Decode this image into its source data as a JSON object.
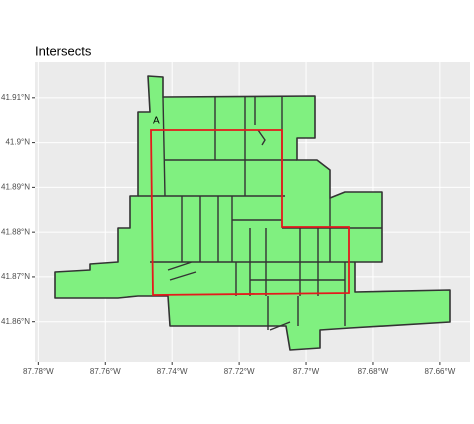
{
  "chart_data": {
    "type": "map",
    "title": "Intersects",
    "annotations": [
      "A"
    ],
    "xlim": [
      -87.781,
      -87.651
    ],
    "ylim": [
      41.851,
      41.918
    ],
    "xticks": [
      {
        "value": -87.78,
        "label": "87.78°W"
      },
      {
        "value": -87.76,
        "label": "87.76°W"
      },
      {
        "value": -87.74,
        "label": "87.74°W"
      },
      {
        "value": -87.72,
        "label": "87.72°W"
      },
      {
        "value": -87.7,
        "label": "87.7°W"
      },
      {
        "value": -87.68,
        "label": "87.68°W"
      },
      {
        "value": -87.66,
        "label": "87.66°W"
      }
    ],
    "yticks": [
      {
        "value": 41.86,
        "label": "41.86°N"
      },
      {
        "value": 41.87,
        "label": "41.87°N"
      },
      {
        "value": 41.88,
        "label": "41.88°N"
      },
      {
        "value": 41.89,
        "label": "41.89°N"
      },
      {
        "value": 41.9,
        "label": "41.9°N"
      },
      {
        "value": 41.91,
        "label": "41.91°N"
      }
    ],
    "grid": true,
    "fill_color": "#80f080",
    "highlight_color": "#e41a1c"
  }
}
